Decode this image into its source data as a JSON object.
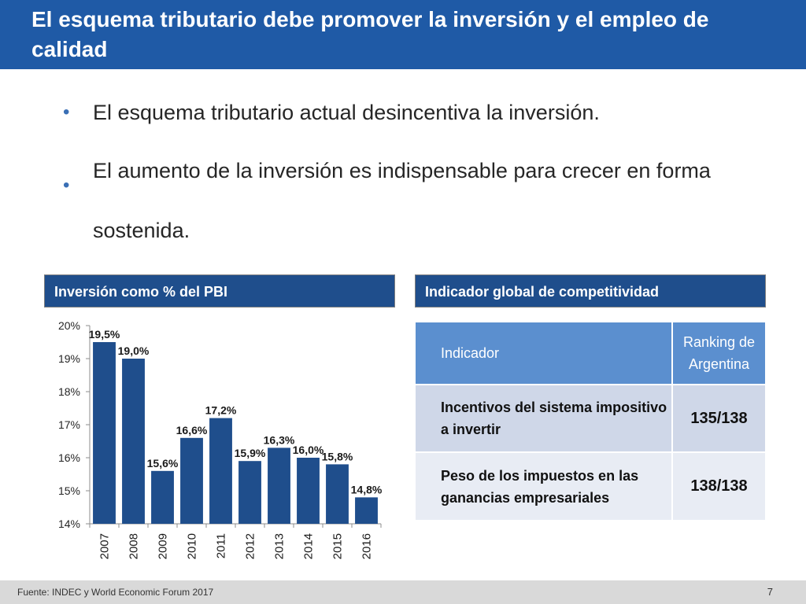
{
  "slide": {
    "title": "El esquema tributario debe promover la inversión y el empleo de calidad",
    "bullets": [
      "El esquema tributario actual desincentiva la inversión.",
      "El aumento de la inversión es indispensable para crecer en forma sostenida."
    ],
    "left_panel_title": "Inversión como % del PBI",
    "right_panel_title": "Indicador global de competitividad",
    "footer_source": "Fuente: INDEC y World Economic Forum 2017",
    "page_number": "7"
  },
  "table": {
    "header_indicator": "Indicador",
    "header_ranking": "Ranking de Argentina",
    "rows": [
      {
        "indicator": "Incentivos del sistema impositivo a invertir",
        "ranking": "135/138"
      },
      {
        "indicator": "Peso de los impuestos en las ganancias empresariales",
        "ranking": "138/138"
      }
    ]
  },
  "colors": {
    "title_bar": "#1f5aa6",
    "panel_header": "#1f4e8c",
    "bar": "#1f4e8c",
    "table_header": "#5b8fcf",
    "table_row_1": "#cfd7e8",
    "table_row_2": "#e8ecf4"
  },
  "chart_data": {
    "type": "bar",
    "title": "Inversión como % del PBI",
    "categories": [
      "2007",
      "2008",
      "2009",
      "2010",
      "2011",
      "2012",
      "2013",
      "2014",
      "2015",
      "2016"
    ],
    "values": [
      19.5,
      19.0,
      15.6,
      16.6,
      17.2,
      15.9,
      16.3,
      16.0,
      15.8,
      14.8
    ],
    "data_labels": [
      "19,5%",
      "19,0%",
      "15,6%",
      "16,6%",
      "17,2%",
      "15,9%",
      "16,3%",
      "16,0%",
      "15,8%",
      "14,8%"
    ],
    "yticks": [
      "14%",
      "15%",
      "16%",
      "17%",
      "18%",
      "19%",
      "20%"
    ],
    "ylim": [
      14,
      20
    ],
    "grid": false,
    "legend": "none"
  }
}
